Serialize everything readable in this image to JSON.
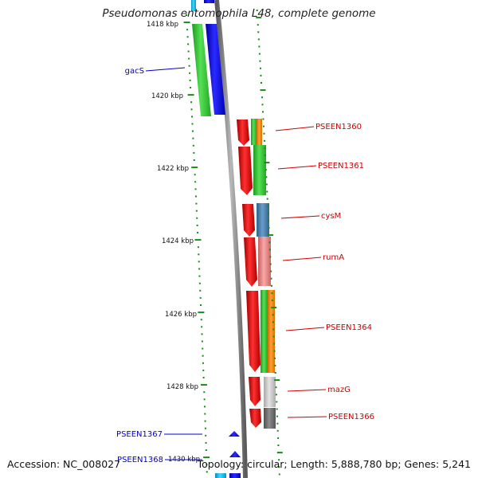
{
  "title": "Pseudomonas entomophila L48, complete genome",
  "footer": {
    "accession": "Accession: NC_008027",
    "summary": "Topology: circular; Length: 5,888,780 bp; Genes: 5,241"
  },
  "ticks": [
    {
      "label": "1418 kbp"
    },
    {
      "label": "1420 kbp"
    },
    {
      "label": "1422 kbp"
    },
    {
      "label": "1424 kbp"
    },
    {
      "label": "1426 kbp"
    },
    {
      "label": "1428 kbp"
    },
    {
      "label": "1430 kbp"
    }
  ],
  "left_genes": [
    {
      "label": "gacS"
    },
    {
      "label": "PSEEN1367"
    },
    {
      "label": "PSEEN1368"
    }
  ],
  "right_genes": [
    {
      "label": "PSEEN1360"
    },
    {
      "label": "PSEEN1361"
    },
    {
      "label": "cysM"
    },
    {
      "label": "rumA"
    },
    {
      "label": "PSEEN1364"
    },
    {
      "label": "mazG"
    },
    {
      "label": "PSEEN1366"
    }
  ],
  "colors": {
    "backbone": "#808080",
    "tick": "#1a8a1a",
    "forward_label": "#0000cc",
    "reverse_label": "#cc0000",
    "gene_red": "#e00000",
    "gene_blue": "#0000ee",
    "gene_green": "#33cc33",
    "gene_orange": "#ff8c00",
    "gene_steelblue": "#4682b4",
    "gene_pink": "#e88080",
    "gene_lightgray": "#c8c8c8",
    "gene_darkgray": "#707070",
    "gene_cyan": "#00bbee"
  }
}
